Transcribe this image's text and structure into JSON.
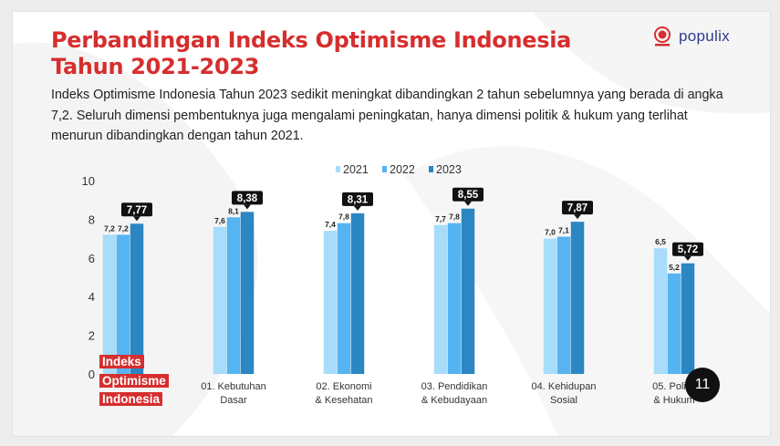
{
  "slide": {
    "title_line1": "Perbandingan Indeks Optimisme Indonesia",
    "title_line2": "Tahun 2021-2023",
    "description": "Indeks Optimisme Indonesia Tahun 2023 sedikit meningkat dibandingkan 2 tahun sebelumnya yang berada di angka 7,2. Seluruh dimensi pembentuknya juga mengalami peningkatan, hanya dimensi politik & hukum yang terlihat menurun dibandingkan dengan tahun 2021.",
    "page_number": "11",
    "brand_tag": [
      "Indeks",
      "Optimisme",
      "Indonesia"
    ],
    "logo_text": "populix",
    "logo_icon": "goodnews-seal-icon"
  },
  "colors": {
    "title": "#d62e2e",
    "s2021": "#a7dcfb",
    "s2022": "#55b4f1",
    "s2023": "#2b86c1",
    "callout": "#111111"
  },
  "chart_data": {
    "type": "bar",
    "categories": [
      [
        "Indeks Optimisme Indonesia"
      ],
      [
        "01. Kebutuhan",
        "Dasar"
      ],
      [
        "02. Ekonomi",
        "& Kesehatan"
      ],
      [
        "03. Pendidikan",
        "& Kebudayaan"
      ],
      [
        "04. Kehidupan",
        "Sosial"
      ],
      [
        "05. Politik",
        "& Hukum"
      ]
    ],
    "series": [
      {
        "name": "2021",
        "values": [
          7.2,
          7.6,
          7.4,
          7.7,
          7.0,
          6.5
        ],
        "labels": [
          "7,2",
          "7,6",
          "7,4",
          "7,7",
          "7,0",
          "6,5"
        ]
      },
      {
        "name": "2022",
        "values": [
          7.2,
          8.1,
          7.8,
          7.8,
          7.1,
          5.2
        ],
        "labels": [
          "7,2",
          "8,1",
          "7,8",
          "7,8",
          "7,1",
          "5,2"
        ]
      },
      {
        "name": "2023",
        "values": [
          7.77,
          8.38,
          8.31,
          8.55,
          7.87,
          5.72
        ],
        "labels": [
          "7,77",
          "8,38",
          "8,31",
          "8,55",
          "7,87",
          "5,72"
        ]
      }
    ],
    "ylim": [
      0,
      10
    ],
    "yticks": [
      "0",
      "2",
      "4",
      "6",
      "8",
      "10"
    ],
    "legend": "top-center",
    "grid": false
  }
}
